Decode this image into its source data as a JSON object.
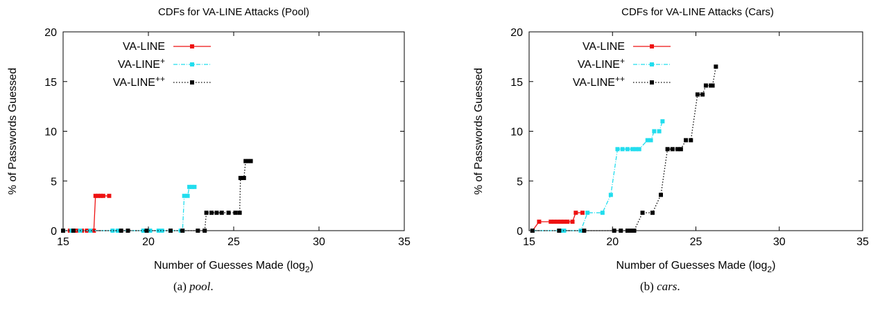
{
  "captions": [
    {
      "label": "(a)",
      "name": "pool",
      "suffix": "."
    },
    {
      "label": "(b)",
      "name": "cars",
      "suffix": "."
    }
  ],
  "chart_data": [
    {
      "type": "line",
      "title": "CDFs for VA-LINE Attacks (Pool)",
      "xlabel": "Number of Guesses Made (log",
      "xlabel_sub": "2",
      "xlabel_suffix": ")",
      "ylabel": "% of Passwords Guessed",
      "xlim": [
        15,
        35
      ],
      "ylim": [
        0,
        20
      ],
      "xticks": [
        15,
        20,
        25,
        30,
        35
      ],
      "yticks": [
        0,
        5,
        10,
        15,
        20
      ],
      "grid": false,
      "legend": "top-left",
      "series": [
        {
          "name": "VA-LINE",
          "sup": "",
          "color": "#ee1111",
          "dash": "solid",
          "points": [
            [
              15.0,
              0
            ],
            [
              15.4,
              0
            ],
            [
              15.8,
              0
            ],
            [
              16.1,
              0
            ],
            [
              16.4,
              0
            ],
            [
              16.8,
              0
            ],
            [
              16.9,
              3.5
            ],
            [
              17.05,
              3.5
            ],
            [
              17.2,
              3.5
            ],
            [
              17.35,
              3.5
            ],
            [
              17.7,
              3.5
            ]
          ]
        },
        {
          "name": "VA-LINE",
          "sup": "+",
          "color": "#22ddee",
          "dash": "dashdot",
          "points": [
            [
              15.0,
              0
            ],
            [
              15.5,
              0
            ],
            [
              16.0,
              0
            ],
            [
              16.6,
              0
            ],
            [
              17.9,
              0
            ],
            [
              18.2,
              0
            ],
            [
              19.7,
              0
            ],
            [
              20.1,
              0
            ],
            [
              20.6,
              0
            ],
            [
              20.8,
              0
            ],
            [
              21.9,
              0
            ],
            [
              22.0,
              0
            ],
            [
              22.1,
              3.5
            ],
            [
              22.3,
              3.5
            ],
            [
              22.4,
              4.4
            ],
            [
              22.55,
              4.4
            ],
            [
              22.7,
              4.4
            ]
          ]
        },
        {
          "name": "VA-LINE",
          "sup": "++",
          "color": "#000000",
          "dash": "dotted",
          "points": [
            [
              15.0,
              0
            ],
            [
              15.6,
              0
            ],
            [
              18.4,
              0
            ],
            [
              18.8,
              0
            ],
            [
              19.9,
              0
            ],
            [
              21.3,
              0
            ],
            [
              22.0,
              0
            ],
            [
              22.9,
              0
            ],
            [
              23.3,
              0
            ],
            [
              23.4,
              1.8
            ],
            [
              23.7,
              1.8
            ],
            [
              24.0,
              1.8
            ],
            [
              24.3,
              1.8
            ],
            [
              24.7,
              1.8
            ],
            [
              25.1,
              1.8
            ],
            [
              25.35,
              1.8
            ],
            [
              25.4,
              5.3
            ],
            [
              25.6,
              5.3
            ],
            [
              25.7,
              7.0
            ],
            [
              25.85,
              7.0
            ],
            [
              26.0,
              7.0
            ]
          ]
        }
      ]
    },
    {
      "type": "line",
      "title": "CDFs for VA-LINE Attacks (Cars)",
      "xlabel": "Number of Guesses Made (log",
      "xlabel_sub": "2",
      "xlabel_suffix": ")",
      "ylabel": "% of Passwords Guessed",
      "xlim": [
        15,
        35
      ],
      "ylim": [
        0,
        20
      ],
      "xticks": [
        15,
        20,
        25,
        30,
        35
      ],
      "yticks": [
        0,
        5,
        10,
        15,
        20
      ],
      "grid": false,
      "legend": "top-left",
      "series": [
        {
          "name": "VA-LINE",
          "sup": "",
          "color": "#ee1111",
          "dash": "solid",
          "points": [
            [
              15.2,
              0
            ],
            [
              15.6,
              0.9
            ],
            [
              16.3,
              0.9
            ],
            [
              16.5,
              0.9
            ],
            [
              16.7,
              0.9
            ],
            [
              16.9,
              0.9
            ],
            [
              17.1,
              0.9
            ],
            [
              17.3,
              0.9
            ],
            [
              17.6,
              0.9
            ],
            [
              17.8,
              1.8
            ],
            [
              18.2,
              1.8
            ]
          ]
        },
        {
          "name": "VA-LINE",
          "sup": "+",
          "color": "#22ddee",
          "dash": "dashdot",
          "points": [
            [
              15.2,
              0
            ],
            [
              16.9,
              0
            ],
            [
              17.1,
              0
            ],
            [
              18.1,
              0
            ],
            [
              18.5,
              1.8
            ],
            [
              19.4,
              1.8
            ],
            [
              19.9,
              3.6
            ],
            [
              20.3,
              8.2
            ],
            [
              20.6,
              8.2
            ],
            [
              20.9,
              8.2
            ],
            [
              21.2,
              8.2
            ],
            [
              21.4,
              8.2
            ],
            [
              21.6,
              8.2
            ],
            [
              22.1,
              9.1
            ],
            [
              22.3,
              9.1
            ],
            [
              22.5,
              10.0
            ],
            [
              22.8,
              10.0
            ],
            [
              23.0,
              11.0
            ]
          ]
        },
        {
          "name": "VA-LINE",
          "sup": "++",
          "color": "#000000",
          "dash": "dotted",
          "points": [
            [
              15.2,
              0
            ],
            [
              16.8,
              0
            ],
            [
              18.3,
              0
            ],
            [
              20.1,
              0
            ],
            [
              20.5,
              0
            ],
            [
              20.9,
              0
            ],
            [
              21.1,
              0
            ],
            [
              21.3,
              0
            ],
            [
              21.8,
              1.8
            ],
            [
              22.4,
              1.8
            ],
            [
              22.9,
              3.6
            ],
            [
              23.3,
              8.2
            ],
            [
              23.6,
              8.2
            ],
            [
              23.9,
              8.2
            ],
            [
              24.1,
              8.2
            ],
            [
              24.4,
              9.1
            ],
            [
              24.7,
              9.1
            ],
            [
              25.1,
              13.7
            ],
            [
              25.4,
              13.7
            ],
            [
              25.6,
              14.6
            ],
            [
              25.9,
              14.6
            ],
            [
              26.0,
              14.6
            ],
            [
              26.2,
              16.5
            ]
          ]
        }
      ]
    }
  ]
}
